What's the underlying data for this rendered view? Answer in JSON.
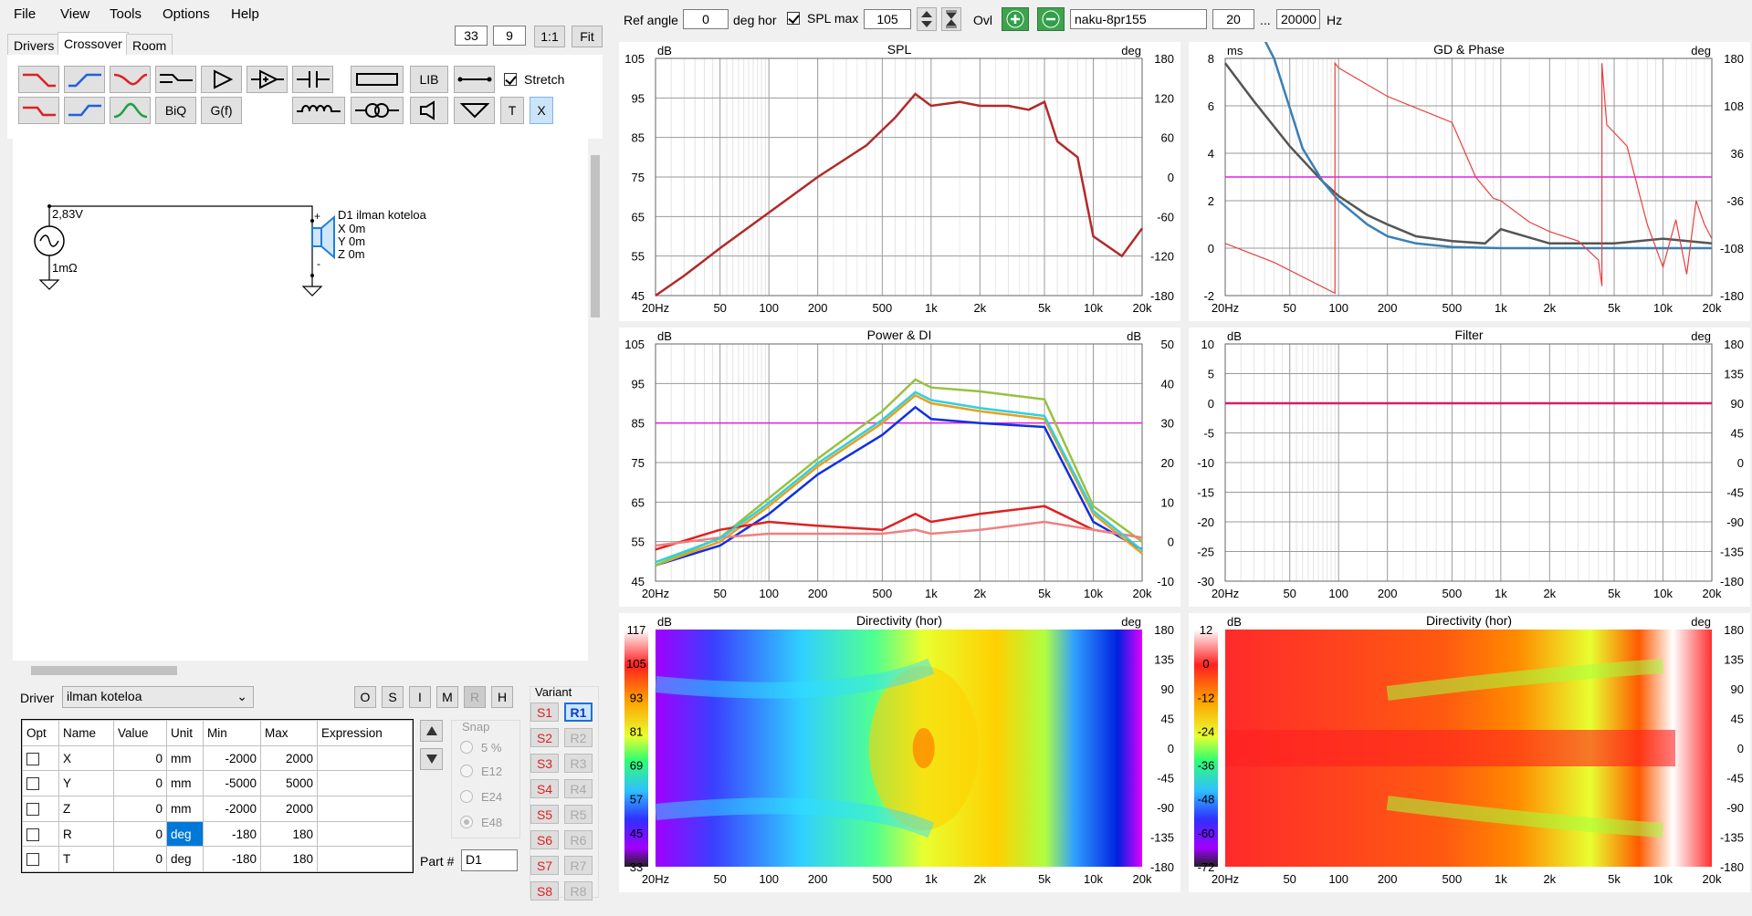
{
  "menu": [
    "File",
    "View",
    "Tools",
    "Options",
    "Help"
  ],
  "tabs": [
    "Drivers",
    "Crossover",
    "Room"
  ],
  "toolbar_top": {
    "num1": "33",
    "num2": "9",
    "one_to_one": "1:1",
    "fit": "Fit"
  },
  "tool_labels": {
    "lib": "LIB",
    "stretch": "Stretch",
    "biq": "BiQ",
    "gf": "G(f)",
    "t": "T",
    "x": "X"
  },
  "schematic": {
    "voltage": "2,83V",
    "res": "1mΩ",
    "driver_name": "D1 ilman koteloa",
    "x": "X 0m",
    "y": "Y 0m",
    "z": "Z 0m",
    "plus": "+",
    "minus": "-"
  },
  "driver_row": {
    "label": "Driver",
    "value": "ilman koteloa",
    "buttons": [
      "O",
      "S",
      "I",
      "M",
      "R",
      "H"
    ]
  },
  "param_table": {
    "headers": [
      "Opt",
      "Name",
      "Value",
      "Unit",
      "Min",
      "Max",
      "Expression"
    ],
    "rows": [
      {
        "name": "X",
        "value": "0",
        "unit": "mm",
        "min": "-2000",
        "max": "2000"
      },
      {
        "name": "Y",
        "value": "0",
        "unit": "mm",
        "min": "-5000",
        "max": "5000"
      },
      {
        "name": "Z",
        "value": "0",
        "unit": "mm",
        "min": "-2000",
        "max": "2000"
      },
      {
        "name": "R",
        "value": "0",
        "unit": "deg",
        "min": "-180",
        "max": "180"
      },
      {
        "name": "T",
        "value": "0",
        "unit": "deg",
        "min": "-180",
        "max": "180"
      }
    ]
  },
  "snap": {
    "title": "Snap",
    "options": [
      "5 %",
      "E12",
      "E24",
      "E48"
    ]
  },
  "part": {
    "label": "Part #",
    "value": "D1"
  },
  "variant": {
    "title": "Variant",
    "s": [
      "S1",
      "S2",
      "S3",
      "S4",
      "S5",
      "S6",
      "S7",
      "S8"
    ],
    "r": [
      "R1",
      "R2",
      "R3",
      "R4",
      "R5",
      "R6",
      "R7",
      "R8"
    ]
  },
  "top_bar": {
    "ref_angle_label": "Ref angle",
    "ref_angle": "0",
    "deg_hor": "deg hor",
    "spl_max_label": "SPL max",
    "spl_max": "105",
    "ovl": "Ovl",
    "file_name": "naku-8pr155",
    "f_lo": "20",
    "ellipsis": "...",
    "f_hi": "20000",
    "hz": "Hz"
  },
  "x_ticks": [
    "20Hz",
    "50",
    "100",
    "200",
    "500",
    "1k",
    "2k",
    "5k",
    "10k",
    "20k"
  ],
  "charts": {
    "spl": {
      "title": "SPL",
      "left_unit": "dB",
      "right_unit": "deg",
      "left": [
        "105",
        "95",
        "85",
        "75",
        "65",
        "55",
        "45"
      ],
      "right": [
        "180",
        "120",
        "60",
        "0",
        "-60",
        "-120",
        "-180"
      ]
    },
    "gd": {
      "title": "GD & Phase",
      "left_unit": "ms",
      "right_unit": "deg",
      "left": [
        "8",
        "6",
        "4",
        "2",
        "0",
        "-2"
      ],
      "right": [
        "180",
        "108",
        "36",
        "-36",
        "-108",
        "-180"
      ]
    },
    "power": {
      "title": "Power & DI",
      "left_unit": "dB",
      "right_unit": "dB",
      "left": [
        "105",
        "95",
        "85",
        "75",
        "65",
        "55",
        "45"
      ],
      "right": [
        "50",
        "40",
        "30",
        "20",
        "10",
        "0",
        "-10"
      ]
    },
    "filter": {
      "title": "Filter",
      "left_unit": "dB",
      "right_unit": "deg",
      "left": [
        "10",
        "5",
        "0",
        "-5",
        "-10",
        "-15",
        "-20",
        "-25",
        "-30"
      ],
      "right": [
        "180",
        "135",
        "90",
        "45",
        "0",
        "-45",
        "-90",
        "-135",
        "-180"
      ]
    },
    "dir1": {
      "title": "Directivity (hor)",
      "left_unit": "dB",
      "right_unit": "deg",
      "scale": [
        "117",
        "105",
        "93",
        "81",
        "69",
        "57",
        "45",
        "33"
      ],
      "right": [
        "180",
        "135",
        "90",
        "45",
        "0",
        "-45",
        "-90",
        "-135",
        "-180"
      ]
    },
    "dir2": {
      "title": "Directivity (hor)",
      "left_unit": "dB",
      "right_unit": "deg",
      "scale": [
        "12",
        "0",
        "-12",
        "-24",
        "-36",
        "-48",
        "-60",
        "-72"
      ],
      "right": [
        "180",
        "135",
        "90",
        "45",
        "0",
        "-45",
        "-90",
        "-135",
        "-180"
      ]
    }
  },
  "chart_data": [
    {
      "type": "line",
      "title": "SPL",
      "x": [
        20,
        30,
        50,
        100,
        200,
        400,
        600,
        800,
        1000,
        1500,
        2000,
        3000,
        4000,
        5000,
        6000,
        8000,
        10000,
        15000,
        20000
      ],
      "series": [
        {
          "values": [
            45,
            50,
            57,
            66,
            75,
            83,
            90,
            96,
            93,
            94,
            93,
            93,
            92,
            94,
            84,
            80,
            60,
            55,
            62
          ]
        }
      ],
      "ylim": [
        45,
        105
      ]
    },
    {
      "type": "line",
      "title": "Power & DI",
      "x": [
        20,
        50,
        100,
        200,
        500,
        800,
        1000,
        2000,
        5000,
        10000,
        20000
      ],
      "series": [
        {
          "values": [
            49,
            54,
            62,
            72,
            82,
            89,
            86,
            85,
            84,
            60,
            53
          ]
        },
        {
          "values": [
            49,
            55,
            64,
            74,
            85,
            92,
            90,
            88,
            86,
            62,
            52
          ]
        },
        {
          "values": [
            49,
            56,
            66,
            76,
            88,
            96,
            94,
            93,
            91,
            64,
            55
          ]
        },
        {
          "values": [
            53,
            58,
            60,
            59,
            58,
            62,
            60,
            62,
            64,
            58,
            56
          ]
        },
        {
          "values": [
            54,
            56,
            57,
            57,
            57,
            58,
            57,
            58,
            60,
            58,
            56
          ]
        }
      ],
      "ylim": [
        45,
        105
      ]
    }
  ]
}
